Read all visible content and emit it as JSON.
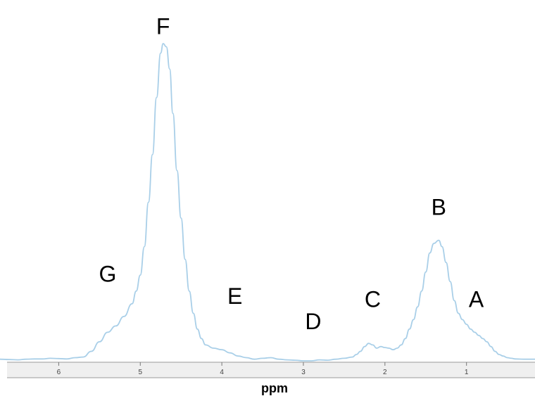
{
  "chart_data": {
    "type": "line",
    "title": "",
    "xlabel": "ppm",
    "ylabel": "",
    "x_reversed": true,
    "xlim": [
      6.72,
      0.16
    ],
    "ylim": [
      0,
      1.0
    ],
    "grid": false,
    "line_color": "#a9cfe8",
    "axis_band_color": "#efefef",
    "x_ticks": [
      {
        "value": 6,
        "label": "6"
      },
      {
        "value": 5,
        "label": "5"
      },
      {
        "value": 4,
        "label": "4"
      },
      {
        "value": 3,
        "label": "3"
      },
      {
        "value": 2,
        "label": "2"
      },
      {
        "value": 1,
        "label": "1"
      }
    ],
    "peak_labels": [
      {
        "text": "A",
        "x": 0.88,
        "y": 0.17
      },
      {
        "text": "B",
        "x": 1.34,
        "y": 0.46
      },
      {
        "text": "C",
        "x": 2.15,
        "y": 0.17
      },
      {
        "text": "D",
        "x": 2.88,
        "y": 0.1
      },
      {
        "text": "E",
        "x": 3.84,
        "y": 0.18
      },
      {
        "text": "F",
        "x": 4.72,
        "y": 1.03
      },
      {
        "text": "G",
        "x": 5.4,
        "y": 0.25
      }
    ],
    "series": [
      {
        "values": [
          [
            6.72,
            0.005
          ],
          [
            6.6,
            0.004
          ],
          [
            6.5,
            0.003
          ],
          [
            6.4,
            0.005
          ],
          [
            6.3,
            0.006
          ],
          [
            6.2,
            0.006
          ],
          [
            6.1,
            0.008
          ],
          [
            6.0,
            0.007
          ],
          [
            5.9,
            0.006
          ],
          [
            5.8,
            0.01
          ],
          [
            5.7,
            0.012
          ],
          [
            5.6,
            0.03
          ],
          [
            5.5,
            0.06
          ],
          [
            5.4,
            0.09
          ],
          [
            5.3,
            0.11
          ],
          [
            5.2,
            0.14
          ],
          [
            5.1,
            0.18
          ],
          [
            5.05,
            0.22
          ],
          [
            5.0,
            0.27
          ],
          [
            4.95,
            0.36
          ],
          [
            4.9,
            0.5
          ],
          [
            4.85,
            0.65
          ],
          [
            4.8,
            0.83
          ],
          [
            4.75,
            0.97
          ],
          [
            4.72,
            1.0
          ],
          [
            4.68,
            0.99
          ],
          [
            4.64,
            0.92
          ],
          [
            4.6,
            0.78
          ],
          [
            4.55,
            0.6
          ],
          [
            4.5,
            0.45
          ],
          [
            4.45,
            0.32
          ],
          [
            4.4,
            0.22
          ],
          [
            4.35,
            0.15
          ],
          [
            4.3,
            0.1
          ],
          [
            4.25,
            0.07
          ],
          [
            4.2,
            0.05
          ],
          [
            4.1,
            0.04
          ],
          [
            4.0,
            0.035
          ],
          [
            3.9,
            0.025
          ],
          [
            3.8,
            0.015
          ],
          [
            3.7,
            0.01
          ],
          [
            3.6,
            0.005
          ],
          [
            3.5,
            0.008
          ],
          [
            3.4,
            0.01
          ],
          [
            3.3,
            0.005
          ],
          [
            3.2,
            0.003
          ],
          [
            3.1,
            0.002
          ],
          [
            3.0,
            0.0
          ],
          [
            2.9,
            0.0
          ],
          [
            2.8,
            0.003
          ],
          [
            2.7,
            0.002
          ],
          [
            2.6,
            0.005
          ],
          [
            2.5,
            0.008
          ],
          [
            2.4,
            0.012
          ],
          [
            2.35,
            0.02
          ],
          [
            2.3,
            0.03
          ],
          [
            2.25,
            0.045
          ],
          [
            2.2,
            0.055
          ],
          [
            2.15,
            0.05
          ],
          [
            2.1,
            0.04
          ],
          [
            2.05,
            0.045
          ],
          [
            2.0,
            0.042
          ],
          [
            1.95,
            0.04
          ],
          [
            1.9,
            0.035
          ],
          [
            1.85,
            0.04
          ],
          [
            1.8,
            0.05
          ],
          [
            1.75,
            0.07
          ],
          [
            1.7,
            0.1
          ],
          [
            1.65,
            0.13
          ],
          [
            1.6,
            0.17
          ],
          [
            1.55,
            0.22
          ],
          [
            1.5,
            0.28
          ],
          [
            1.45,
            0.34
          ],
          [
            1.4,
            0.37
          ],
          [
            1.34,
            0.38
          ],
          [
            1.3,
            0.36
          ],
          [
            1.25,
            0.31
          ],
          [
            1.2,
            0.25
          ],
          [
            1.15,
            0.19
          ],
          [
            1.1,
            0.15
          ],
          [
            1.05,
            0.13
          ],
          [
            1.0,
            0.115
          ],
          [
            0.95,
            0.1
          ],
          [
            0.9,
            0.09
          ],
          [
            0.85,
            0.08
          ],
          [
            0.8,
            0.07
          ],
          [
            0.75,
            0.06
          ],
          [
            0.7,
            0.045
          ],
          [
            0.65,
            0.03
          ],
          [
            0.6,
            0.02
          ],
          [
            0.55,
            0.015
          ],
          [
            0.5,
            0.01
          ],
          [
            0.45,
            0.008
          ],
          [
            0.4,
            0.006
          ],
          [
            0.3,
            0.005
          ],
          [
            0.16,
            0.005
          ]
        ]
      }
    ]
  }
}
